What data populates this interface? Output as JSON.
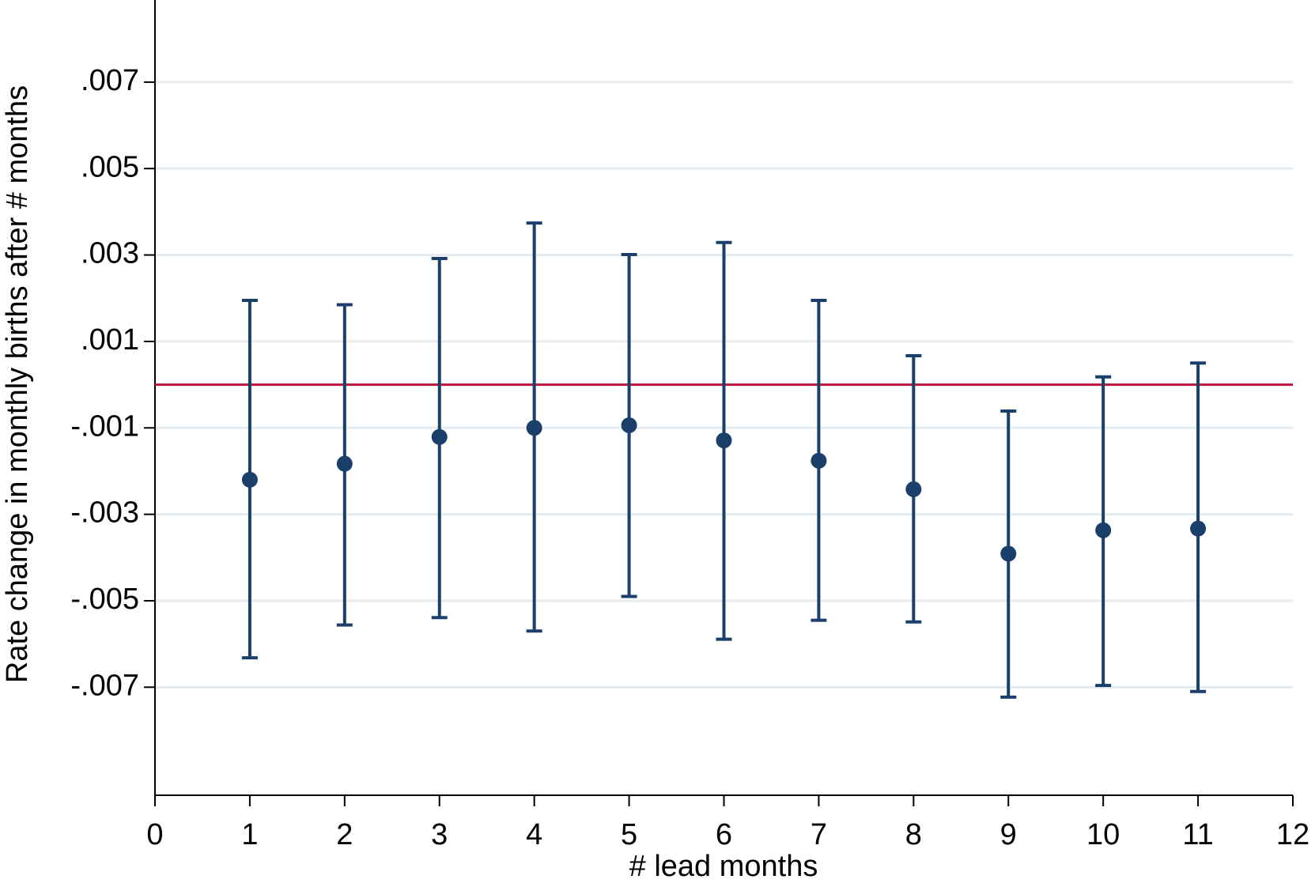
{
  "chart_data": {
    "type": "errorbar",
    "x_label": "# lead months",
    "y_label": "Rate change in monthly births after # months",
    "x": [
      1,
      2,
      3,
      4,
      5,
      6,
      7,
      8,
      9,
      10,
      11
    ],
    "series": [
      {
        "color": "#1b3f6b",
        "values": [
          -0.0022,
          -0.00183,
          -0.00121,
          -0.001,
          -0.00094,
          -0.00129,
          -0.00176,
          -0.00242,
          -0.00391,
          -0.00337,
          -0.00333
        ],
        "lower": [
          -0.00632,
          -0.00556,
          -0.00539,
          -0.0057,
          -0.0049,
          -0.00589,
          -0.00545,
          -0.00549,
          -0.00723,
          -0.00696,
          -0.0071
        ],
        "upper": [
          0.00195,
          0.00185,
          0.00292,
          0.00374,
          0.00301,
          0.00329,
          0.00195,
          0.00067,
          -0.00061,
          0.00018,
          0.0005
        ]
      }
    ],
    "reference_line": {
      "value": 0,
      "color": "#c0143c"
    },
    "xlim": [
      0,
      12
    ],
    "xticks": [
      0,
      1,
      2,
      3,
      4,
      5,
      6,
      7,
      8,
      9,
      10,
      11,
      12
    ],
    "ylim": [
      -0.0095,
      0.0089
    ],
    "yticks": [
      {
        "value": -0.007,
        "label": "-.007"
      },
      {
        "value": -0.005,
        "label": "-.005"
      },
      {
        "value": -0.003,
        "label": "-.003"
      },
      {
        "value": -0.001,
        "label": "-.001"
      },
      {
        "value": 0.001,
        "label": ".001"
      },
      {
        "value": 0.003,
        "label": ".003"
      },
      {
        "value": 0.005,
        "label": ".005"
      },
      {
        "value": 0.007,
        "label": ".007"
      }
    ],
    "grid": true
  }
}
